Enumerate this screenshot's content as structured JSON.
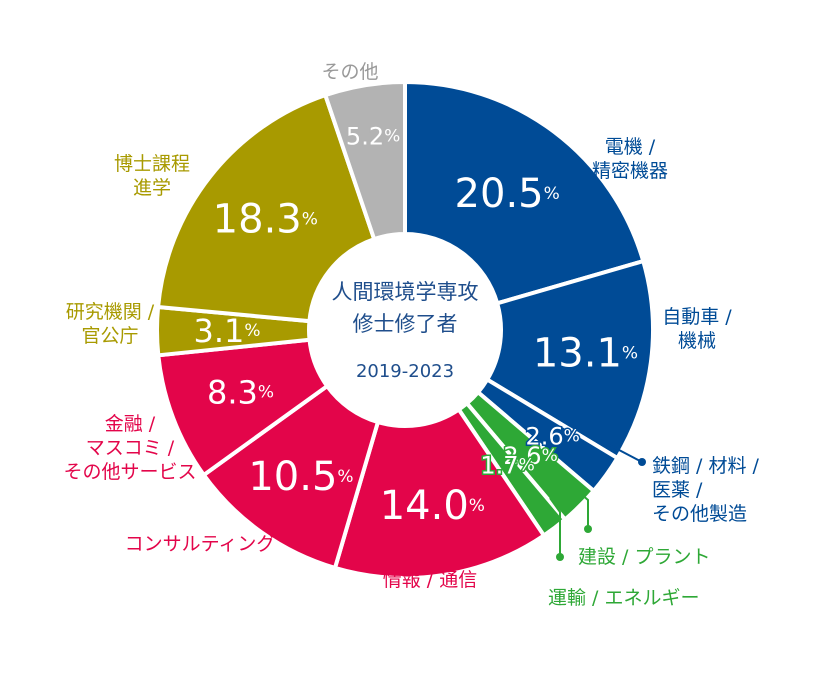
{
  "chart_data": {
    "type": "pie",
    "title": "人間環境学専攻 修士修了者 2019-2023",
    "title_lines": [
      "人間環境学専攻",
      "修士修了者"
    ],
    "period": "2019-2023",
    "unit": "%",
    "slices": [
      {
        "label": "電機 / 精密機器",
        "lines": [
          "電機 /",
          "精密機器"
        ],
        "value": 20.5,
        "color": "#004b96"
      },
      {
        "label": "自動車 / 機械",
        "lines": [
          "自動車 /",
          "機械"
        ],
        "value": 13.1,
        "color": "#004b96"
      },
      {
        "label": "鉄鋼 / 材料 / 医薬 / その他製造",
        "lines": [
          "鉄鋼 / 材料 /",
          "医薬 /",
          "その他製造"
        ],
        "value": 2.6,
        "color": "#004b96"
      },
      {
        "label": "建設 / プラント",
        "lines": [
          "建設 / プラント"
        ],
        "value": 2.6,
        "color": "#2ea836"
      },
      {
        "label": "運輸 / エネルギー",
        "lines": [
          "運輸 / エネルギー"
        ],
        "value": 1.7,
        "color": "#2ea836"
      },
      {
        "label": "情報 / 通信",
        "lines": [
          "情報 / 通信"
        ],
        "value": 14.0,
        "color": "#e3054a"
      },
      {
        "label": "コンサルティング",
        "lines": [
          "コンサルティング"
        ],
        "value": 10.5,
        "color": "#e3054a"
      },
      {
        "label": "金融 / マスコミ / その他サービス",
        "lines": [
          "金融 /",
          "マスコミ /",
          "その他サービス"
        ],
        "value": 8.3,
        "color": "#e3054a"
      },
      {
        "label": "研究機関 / 官公庁",
        "lines": [
          "研究機関 /",
          "官公庁"
        ],
        "value": 3.1,
        "color": "#a89a00"
      },
      {
        "label": "博士課程進学",
        "lines": [
          "博士課程",
          "進学"
        ],
        "value": 18.3,
        "color": "#a89a00"
      },
      {
        "label": "その他",
        "lines": [
          "その他"
        ],
        "value": 5.2,
        "color": "#b3b3b3"
      }
    ]
  }
}
